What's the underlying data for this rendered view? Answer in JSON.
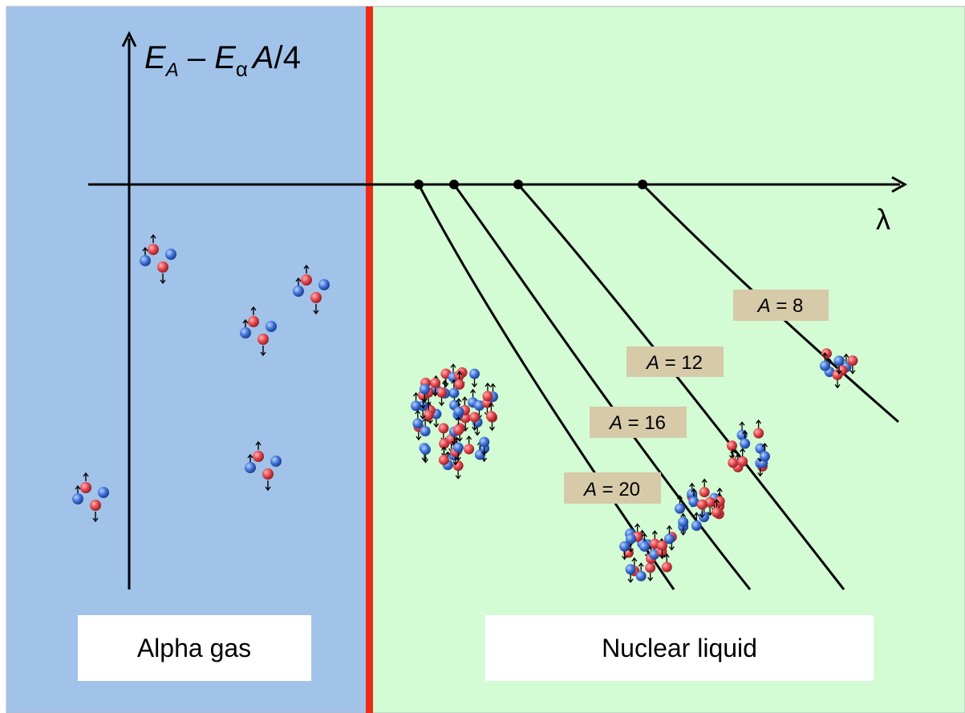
{
  "colors": {
    "gas_region": "#a1c3ea",
    "liquid_region": "#d3fbd4",
    "divider": "#ee2b16",
    "axis": "#000000",
    "label_box": "#d6caa9",
    "proton": "#e0424a",
    "neutron": "#3b6fd6"
  },
  "axis": {
    "y_label_main_1": "E",
    "y_label_sub_1": "A",
    "y_label_dash": " – ",
    "y_label_main_2": "E",
    "y_label_sub_2": "α",
    "y_label_tail_italic": "A",
    "y_label_tail": "/4",
    "x_label": "λ"
  },
  "lines": [
    {
      "A_label": "A",
      "eq": " = 20"
    },
    {
      "A_label": "A",
      "eq": " = 16"
    },
    {
      "A_label": "A",
      "eq": " = 12"
    },
    {
      "A_label": "A",
      "eq": " = 8"
    }
  ],
  "regions": {
    "gas_label": "Alpha gas",
    "liquid_label": "Nuclear liquid"
  },
  "nucleon_legend_icons": [
    "proton-sphere-icon",
    "neutron-sphere-icon",
    "spin-up-arrow-icon",
    "spin-down-arrow-icon"
  ]
}
